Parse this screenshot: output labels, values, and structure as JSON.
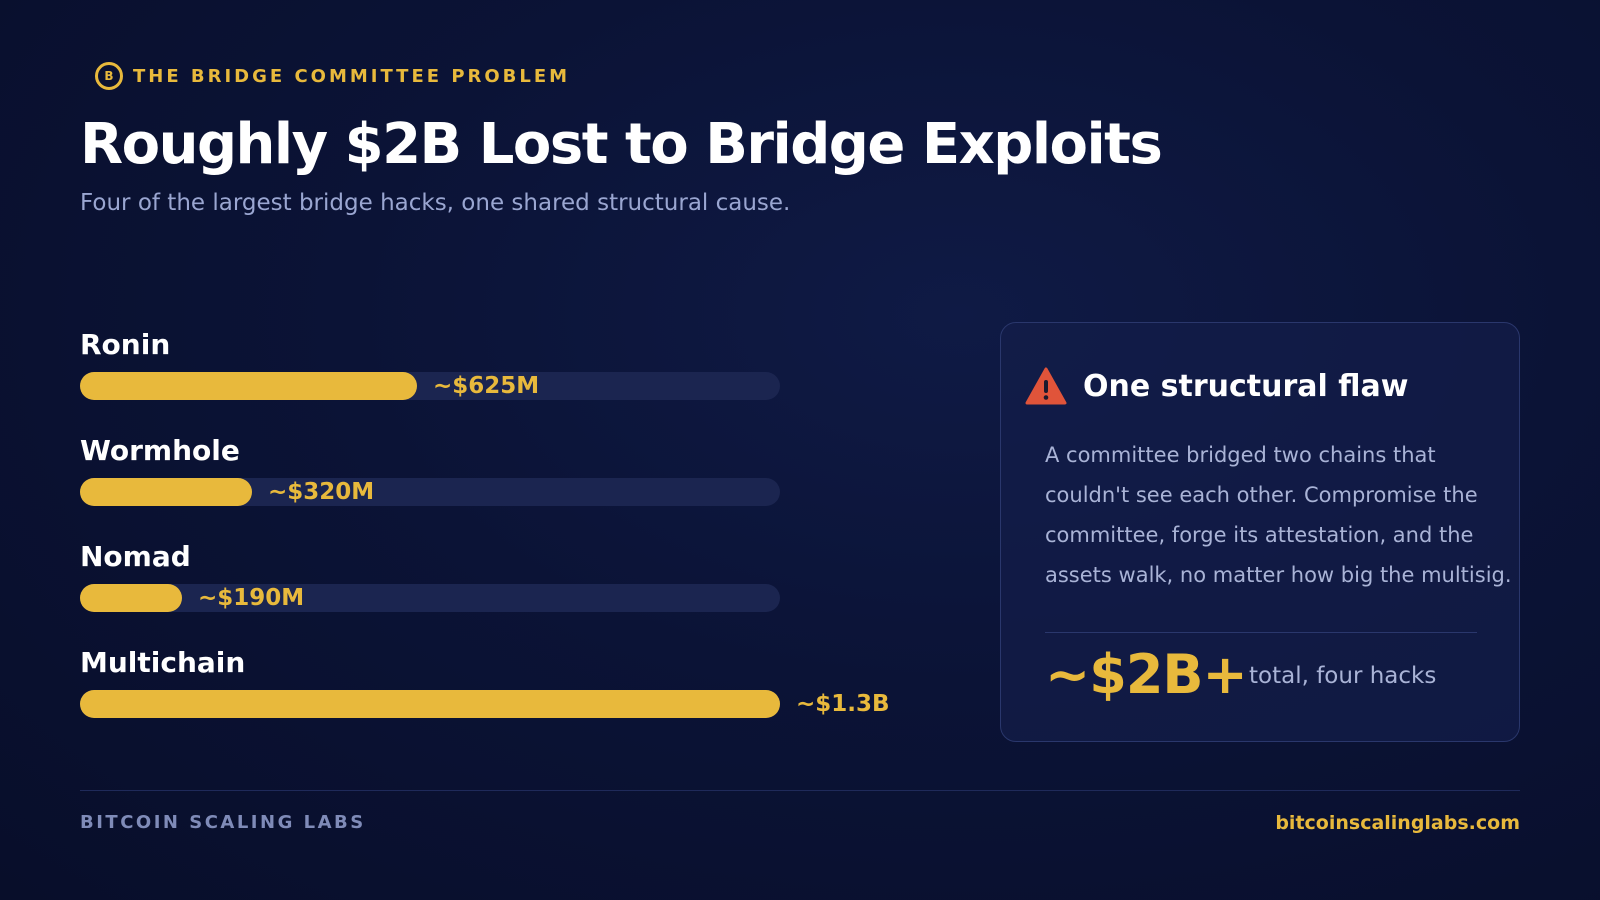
{
  "eyebrow": {
    "icon_letter": "B",
    "text": "THE BRIDGE COMMITTEE PROBLEM"
  },
  "header": {
    "title": "Roughly $2B Lost to Bridge Exploits",
    "subtitle": "Four of the largest bridge hacks, one shared structural cause."
  },
  "chart_data": {
    "type": "bar",
    "orientation": "horizontal",
    "categories": [
      "Ronin",
      "Wormhole",
      "Nomad",
      "Multichain"
    ],
    "values": [
      625,
      320,
      190,
      1300
    ],
    "value_labels": [
      "~$625M",
      "~$320M",
      "~$190M",
      "~$1.3B"
    ],
    "unit": "USD millions",
    "xlim": [
      0,
      1300
    ],
    "grid": false,
    "bar_color": "#e8b93c",
    "track_color": "#1b2550"
  },
  "card": {
    "icon": "warning-triangle-icon",
    "title": "One structural flaw",
    "body": "A committee bridged two chains that couldn't see each other. Compromise the committee, forge its attestation, and the assets walk, no matter how big the multisig.",
    "stat_value": "~$2B+",
    "stat_label": "total, four hacks"
  },
  "footer": {
    "brand": "BITCOIN SCALING LABS",
    "url": "bitcoinscalinglabs.com"
  },
  "colors": {
    "accent": "#e8b93c",
    "background": "#0b1336",
    "warning": "#e0543a"
  }
}
